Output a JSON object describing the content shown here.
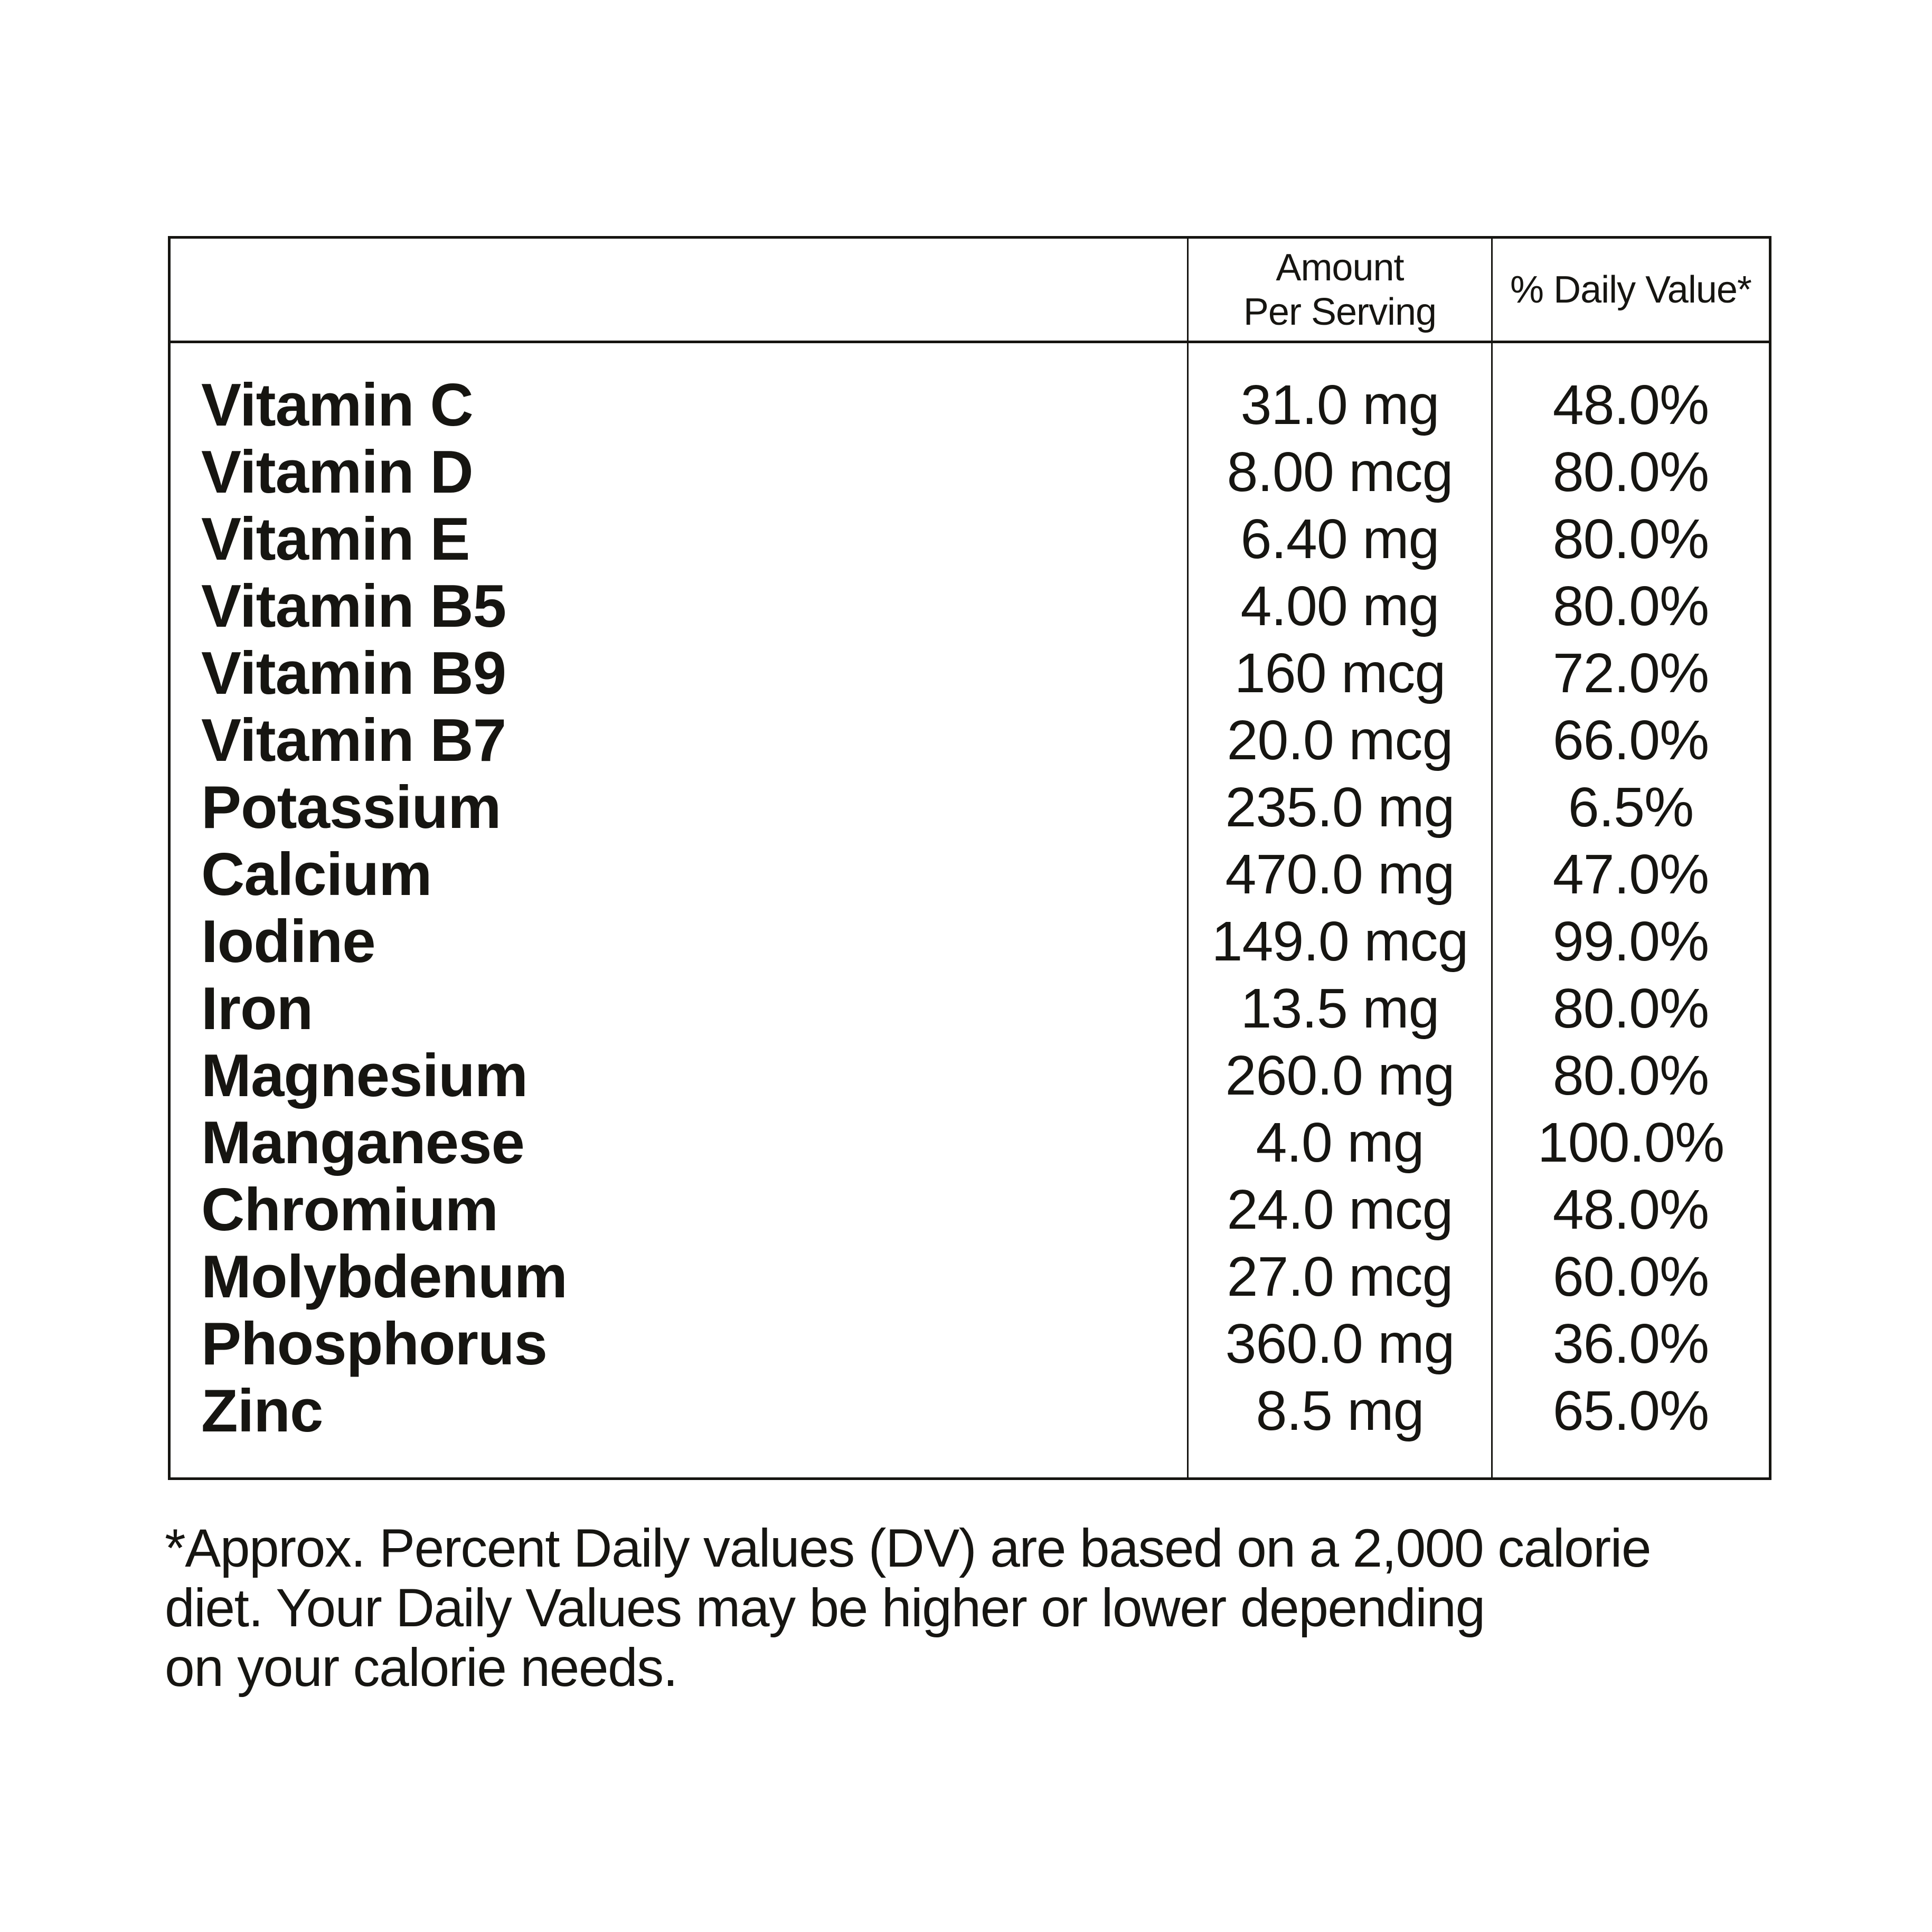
{
  "colors": {
    "text": "#161511",
    "border": "#161511",
    "background": "#ffffff"
  },
  "table": {
    "header": {
      "item_label": "",
      "amount_label": "Amount\nPer Serving",
      "daily_value_label": "% Daily Value*"
    },
    "rows": [
      {
        "name": "Vitamin C",
        "amount": "31.0 mg",
        "dv": "48.0%"
      },
      {
        "name": "Vitamin D",
        "amount": "8.00 mcg",
        "dv": "80.0%"
      },
      {
        "name": "Vitamin E",
        "amount": "6.40 mg",
        "dv": "80.0%"
      },
      {
        "name": "Vitamin B5",
        "amount": "4.00 mg",
        "dv": "80.0%"
      },
      {
        "name": "Vitamin B9",
        "amount": "160 mcg",
        "dv": "72.0%"
      },
      {
        "name": "Vitamin B7",
        "amount": "20.0 mcg",
        "dv": "66.0%"
      },
      {
        "name": "Potassium",
        "amount": "235.0 mg",
        "dv": "6.5%"
      },
      {
        "name": "Calcium",
        "amount": "470.0 mg",
        "dv": "47.0%"
      },
      {
        "name": "Iodine",
        "amount": "149.0 mcg",
        "dv": "99.0%"
      },
      {
        "name": "Iron",
        "amount": "13.5 mg",
        "dv": "80.0%"
      },
      {
        "name": "Magnesium",
        "amount": "260.0 mg",
        "dv": "80.0%"
      },
      {
        "name": "Manganese",
        "amount": "4.0 mg",
        "dv": "100.0%"
      },
      {
        "name": "Chromium",
        "amount": "24.0 mcg",
        "dv": "48.0%"
      },
      {
        "name": "Molybdenum",
        "amount": "27.0 mcg",
        "dv": "60.0%"
      },
      {
        "name": "Phosphorus",
        "amount": "360.0 mg",
        "dv": "36.0%"
      },
      {
        "name": "Zinc",
        "amount": "8.5 mg",
        "dv": "65.0%"
      }
    ]
  },
  "footnote": {
    "text": "*Approx. Percent Daily values (DV) are based on a 2,000 calorie\ndiet. Your Daily Values may be higher or lower depending\non your calorie needs."
  }
}
